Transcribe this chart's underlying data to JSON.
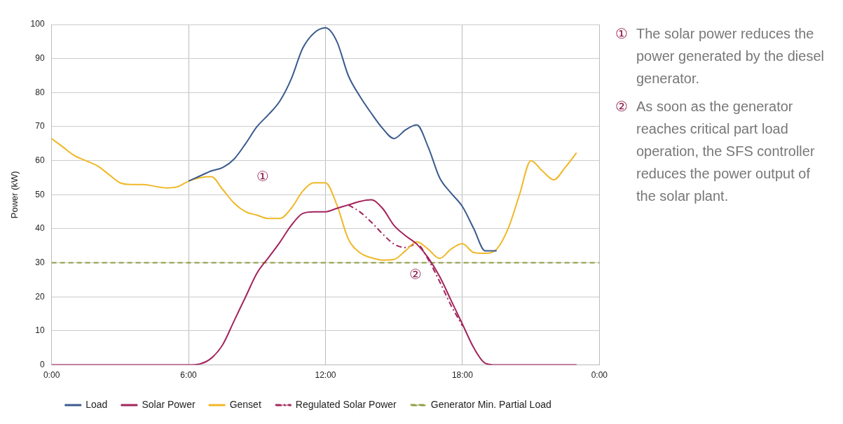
{
  "chart_data": {
    "type": "line",
    "ylabel": "Power (kW)",
    "x": [
      0,
      0.5,
      1,
      1.5,
      2,
      2.5,
      3,
      3.5,
      4,
      4.5,
      5,
      5.5,
      6,
      6.5,
      7,
      7.5,
      8,
      8.5,
      9,
      9.5,
      10,
      10.5,
      11,
      11.5,
      12,
      12.5,
      13,
      13.5,
      14,
      14.5,
      15,
      15.5,
      16,
      16.5,
      17,
      17.5,
      18,
      18.5,
      19,
      19.5,
      20,
      20.5,
      21,
      21.5,
      22,
      22.5,
      23
    ],
    "series": [
      {
        "name": "Load",
        "color": "#3b5b8e",
        "values": [
          null,
          null,
          null,
          null,
          null,
          null,
          null,
          null,
          null,
          null,
          null,
          null,
          54,
          55.5,
          57,
          58,
          60.5,
          65,
          70,
          73.5,
          77.5,
          84,
          93,
          97.5,
          99,
          95,
          85,
          79,
          74,
          69.5,
          66.5,
          69,
          70.5,
          64,
          55,
          50.5,
          46.5,
          40,
          33.5,
          33.5,
          null,
          null,
          null,
          null,
          null,
          null,
          null
        ]
      },
      {
        "name": "Solar Power",
        "color": "#a3245c",
        "values": [
          0,
          0,
          0,
          0,
          0,
          0,
          0,
          0,
          0,
          0,
          0,
          0,
          0,
          0.3,
          2,
          6,
          13,
          20,
          27,
          31.5,
          36,
          41,
          44.5,
          45,
          45,
          46,
          47,
          48,
          48.5,
          46,
          41,
          38,
          35.5,
          31.5,
          26,
          19,
          12,
          5,
          0.5,
          0,
          0,
          0,
          0,
          0,
          0,
          0,
          0
        ]
      },
      {
        "name": "Genset",
        "color": "#f0b828",
        "values": [
          66.5,
          64,
          61.5,
          60,
          58.5,
          56,
          53.5,
          53,
          53,
          52.5,
          52,
          52.3,
          54,
          55,
          55.3,
          51.5,
          47.5,
          45,
          44,
          43,
          43,
          46,
          51,
          53.5,
          53.5,
          47,
          37,
          33,
          31.5,
          30.8,
          31,
          33.5,
          36.2,
          34,
          31.3,
          34,
          35.6,
          33,
          32.8,
          34,
          40,
          50,
          60,
          57,
          54.4,
          58,
          62.3
        ]
      },
      {
        "name": "Regulated Solar Power",
        "color": "#a3245c",
        "line_style": "dashdot",
        "x": [
          13,
          13.5,
          14,
          14.5,
          15,
          15.5,
          16,
          16.5,
          17,
          17.5,
          18
        ],
        "values": [
          47,
          45,
          42,
          38.5,
          35.5,
          34.5,
          35.5,
          31,
          24.5,
          17.5,
          11.5
        ]
      }
    ],
    "ref_lines": [
      {
        "axis": "y",
        "value": 30,
        "label": "Generator Min. Partial Load",
        "color": "#8e9b3e",
        "line_style": "dashed"
      }
    ],
    "xlim": [
      0,
      24
    ],
    "xticks": [
      {
        "value": 0,
        "label": "0:00"
      },
      {
        "value": 6,
        "label": "6:00"
      },
      {
        "value": 12,
        "label": "12:00"
      },
      {
        "value": 18,
        "label": "18:00"
      },
      {
        "value": 24,
        "label": "0:00"
      }
    ],
    "ylim": [
      0,
      100
    ],
    "yticks": [
      0,
      10,
      20,
      30,
      40,
      50,
      60,
      70,
      80,
      90,
      100
    ],
    "grid": true,
    "legend": "bottom",
    "marker": "none",
    "line_style": "solid",
    "annotations": [
      "①",
      "②",
      "① The solar power reduces the power generated by the diesel generator.",
      "② As soon as the generator reaches critical part load operation, the SFS controller reduces the power output of the solar plant."
    ]
  }
}
